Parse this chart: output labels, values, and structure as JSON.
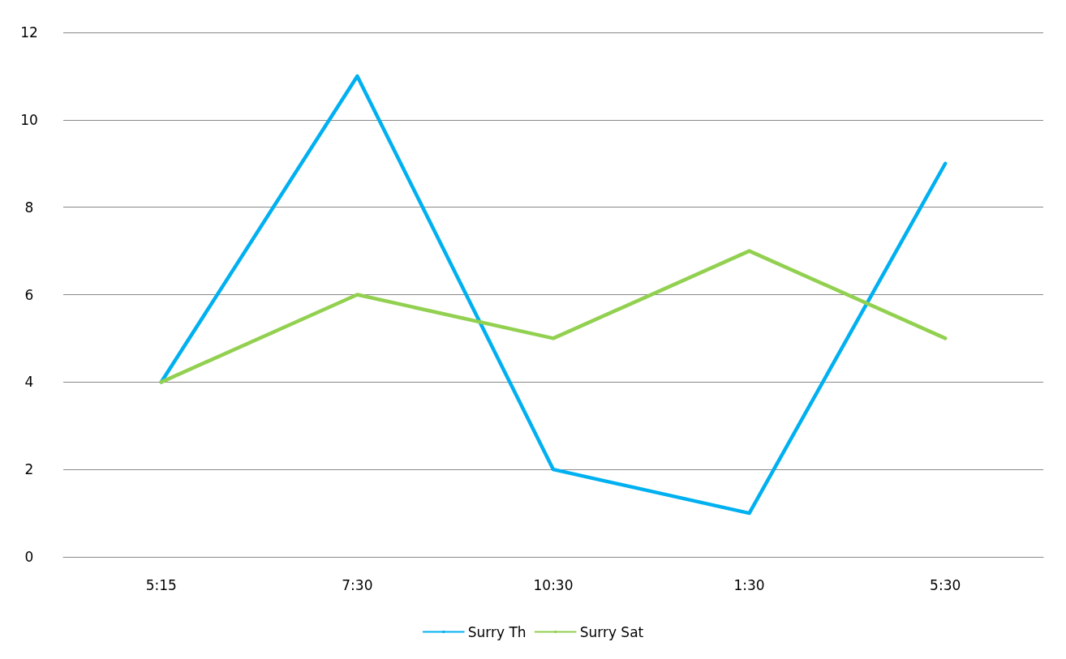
{
  "chart_data": {
    "type": "line",
    "categories": [
      "5:15",
      "7:30",
      "10:30",
      "1:30",
      "5:30"
    ],
    "series": [
      {
        "name": "Surry Th",
        "color": "#00b0f0",
        "values": [
          4,
          11,
          2,
          1,
          9
        ]
      },
      {
        "name": "Surry Sat",
        "color": "#92d050",
        "values": [
          4,
          6,
          5,
          7,
          5
        ]
      }
    ],
    "ylim": [
      0,
      12
    ],
    "yticks": [
      0,
      2,
      4,
      6,
      8,
      10,
      12
    ],
    "grid": "y",
    "legend": "bottom",
    "marker": "none",
    "line_style": "solid"
  }
}
